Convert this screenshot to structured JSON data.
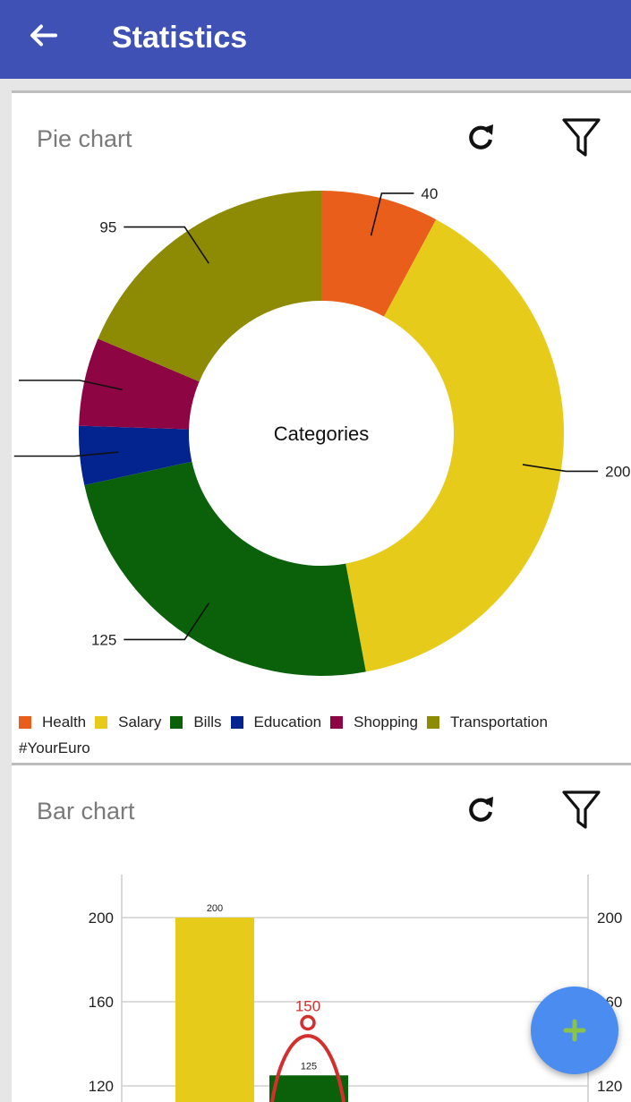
{
  "appbar": {
    "title": "Statistics",
    "back_icon": "arrow-left-icon"
  },
  "pie_card": {
    "title": "Pie chart",
    "refresh_icon": "refresh-icon",
    "filter_icon": "filter-icon",
    "brand": "#YourEuro"
  },
  "bar_card": {
    "title": "Bar chart",
    "refresh_icon": "refresh-icon",
    "filter_icon": "filter-icon"
  },
  "fab": {
    "icon": "plus-icon",
    "icon_color": "#8bc34a",
    "color": "#4a8cf0"
  },
  "chart_data": [
    {
      "type": "pie",
      "center_text": "Categories",
      "categories": [
        "Health",
        "Salary",
        "Bills",
        "Education",
        "Shopping",
        "Transportation"
      ],
      "values": [
        40,
        200,
        125,
        20,
        30,
        95
      ],
      "colors": [
        "#e95e1a",
        "#e6cb1b",
        "#0a610a",
        "#03238f",
        "#8e0543",
        "#8d8a03"
      ],
      "legend": "bottom-left"
    },
    {
      "type": "bar",
      "categories": [
        "Salary",
        "Bills"
      ],
      "values": [
        200,
        125
      ],
      "colors": [
        "#e6cb1b",
        "#0a610a"
      ],
      "line_point": {
        "value": 150,
        "label": "150",
        "color": "#d32f2f"
      },
      "yticks": [
        "120",
        "160",
        "200"
      ],
      "ylim": [
        80,
        220
      ],
      "grid": true
    }
  ]
}
